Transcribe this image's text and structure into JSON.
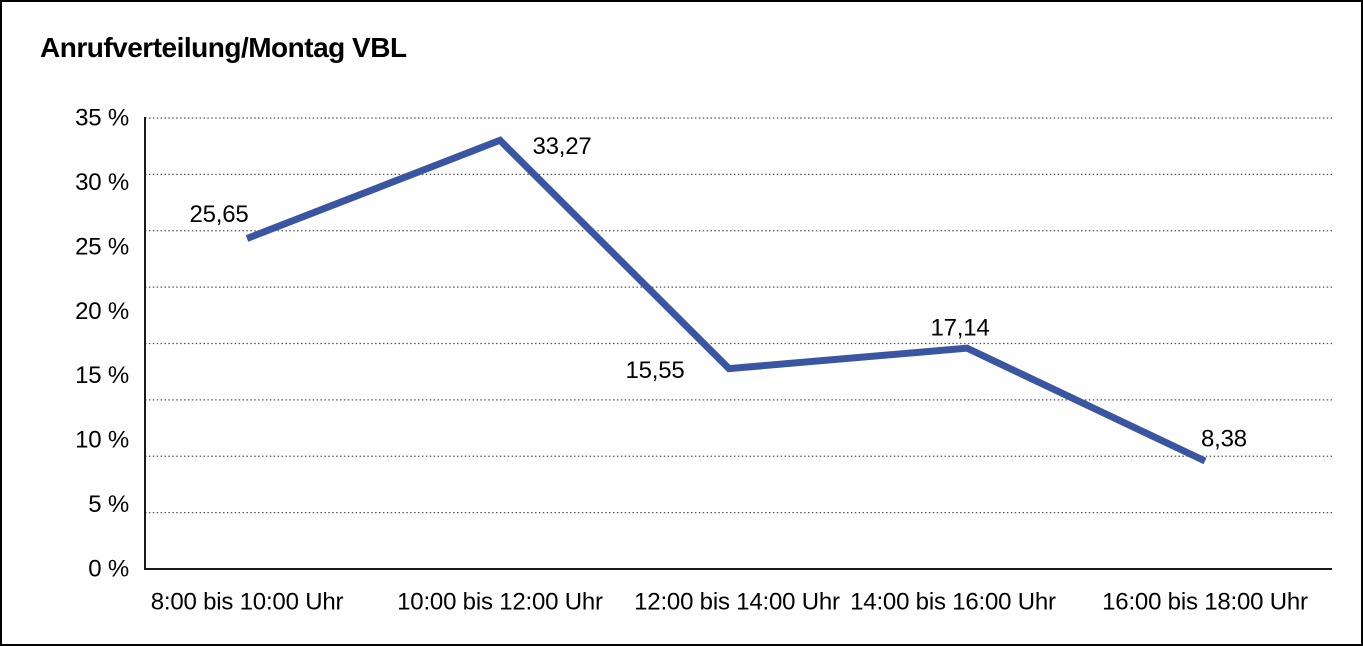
{
  "chart_data": {
    "type": "line",
    "title": "Anrufverteilung/Montag VBL",
    "categories": [
      "8:00 bis 10:00 Uhr",
      "10:00 bis 12:00 Uhr",
      "12:00 bis 14:00 Uhr",
      "14:00 bis 16:00 Uhr",
      "16:00 bis 18:00 Uhr"
    ],
    "values": [
      25.65,
      33.27,
      15.55,
      17.14,
      8.38
    ],
    "data_labels": [
      "25,65",
      "33,27",
      "15,55",
      "17,14",
      "8,38"
    ],
    "y_axis": {
      "min": 0,
      "max": 35,
      "unit": "%",
      "tick_values": [
        0,
        5,
        10,
        15,
        20,
        25,
        30,
        35
      ],
      "tick_labels": [
        "0 %",
        "5 %",
        "10 %",
        "15 %",
        "20 %",
        "25 %",
        "30 %",
        "35 %"
      ]
    },
    "xlabel": "",
    "ylabel": "",
    "legend": "none",
    "grid": "dotted-horizontal",
    "gridline_divisions": 8,
    "line_color": "#3A56A3",
    "grid_color": "#555555",
    "axis_color": "#1a1a1a",
    "text_color": "#000000",
    "background_color": "#ffffff"
  }
}
